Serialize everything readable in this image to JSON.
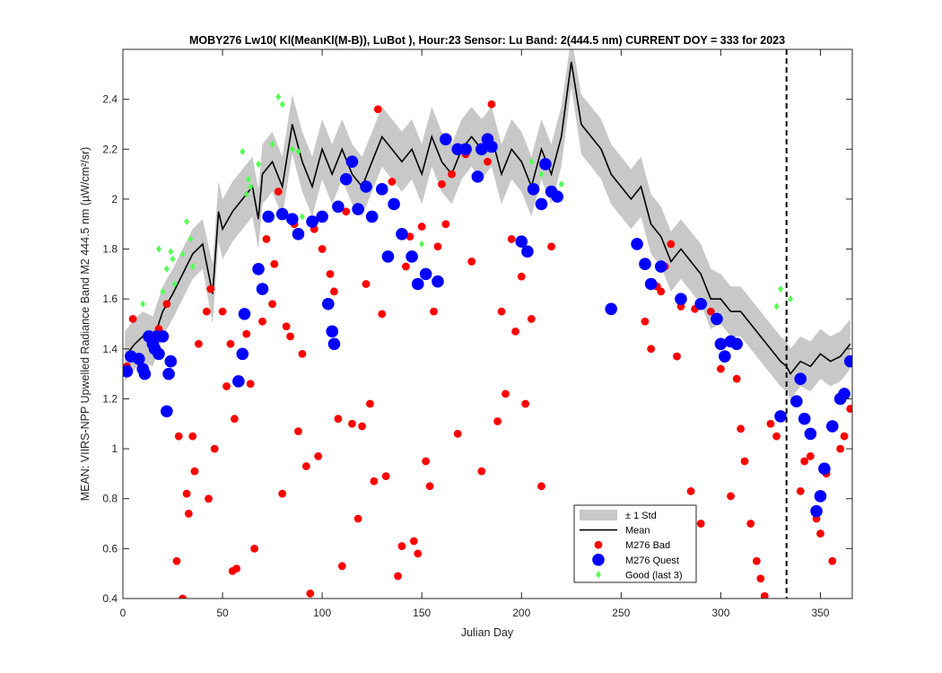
{
  "chart_data": {
    "type": "scatter",
    "title": "MOBY276   Lw10( Kl(MeanKl(M-B)), LuBot ),    Hour:23 Sensor: Lu Band: 2(444.5 nm)    CURRENT DOY = 333 for 2023",
    "xlabel": "Julian Day",
    "ylabel": "MEAN: VIIRS-NPP Upwelled Radiance Band M2 444.5 nm (µW/cm²/sr)",
    "xlim": [
      0,
      366
    ],
    "ylim": [
      0.4,
      2.6
    ],
    "xticks": [
      0,
      50,
      100,
      150,
      200,
      250,
      300,
      350
    ],
    "yticks": [
      0.4,
      0.6,
      0.8,
      1.0,
      1.2,
      1.4,
      1.6,
      1.8,
      2.0,
      2.2,
      2.4
    ],
    "ytick_labels": [
      "0.4",
      "0.6",
      "0.8",
      "1",
      "1.2",
      "1.4",
      "1.6",
      "1.8",
      "2",
      "2.2",
      "2.4"
    ],
    "current_doy": 333,
    "grid": false,
    "legend_position": "bottom-center",
    "legend": [
      {
        "label": "± 1 Std",
        "kind": "band",
        "color": "#c8c8c8"
      },
      {
        "label": "Mean",
        "kind": "line",
        "color": "#000000"
      },
      {
        "label": "M276 Bad",
        "kind": "dot",
        "color": "#ff0000"
      },
      {
        "label": "M276 Quest",
        "kind": "dot",
        "color": "#0000ff"
      },
      {
        "label": "Good (last 3)",
        "kind": "diamond",
        "color": "#55ff55"
      }
    ],
    "mean": {
      "x": [
        1,
        6,
        10,
        15,
        20,
        25,
        30,
        35,
        40,
        45,
        48,
        50,
        55,
        60,
        65,
        68,
        70,
        75,
        80,
        85,
        90,
        95,
        100,
        105,
        110,
        115,
        120,
        125,
        130,
        135,
        140,
        145,
        150,
        155,
        160,
        165,
        170,
        175,
        180,
        185,
        190,
        195,
        200,
        205,
        210,
        215,
        220,
        225,
        230,
        235,
        240,
        245,
        250,
        255,
        260,
        265,
        270,
        275,
        280,
        285,
        290,
        295,
        300,
        305,
        310,
        315,
        320,
        325,
        330,
        333,
        335,
        340,
        345,
        350,
        355,
        360,
        365
      ],
      "y": [
        1.37,
        1.42,
        1.45,
        1.43,
        1.55,
        1.62,
        1.7,
        1.78,
        1.82,
        1.62,
        1.95,
        1.88,
        1.95,
        2.0,
        2.05,
        1.92,
        2.1,
        2.15,
        2.05,
        2.3,
        2.15,
        2.05,
        2.2,
        2.1,
        2.2,
        2.1,
        2.05,
        2.15,
        2.25,
        2.2,
        2.15,
        2.2,
        2.1,
        2.25,
        2.15,
        2.1,
        2.2,
        2.25,
        2.2,
        2.25,
        2.1,
        2.2,
        2.15,
        2.05,
        2.2,
        2.1,
        2.25,
        2.55,
        2.3,
        2.25,
        2.2,
        2.1,
        2.05,
        2.0,
        2.05,
        1.9,
        1.85,
        1.75,
        1.8,
        1.75,
        1.7,
        1.6,
        1.6,
        1.55,
        1.55,
        1.5,
        1.45,
        1.4,
        1.35,
        1.33,
        1.3,
        1.35,
        1.33,
        1.38,
        1.35,
        1.37,
        1.42
      ],
      "std": [
        0.1,
        0.1,
        0.1,
        0.1,
        0.1,
        0.1,
        0.1,
        0.1,
        0.1,
        0.12,
        0.12,
        0.12,
        0.12,
        0.12,
        0.12,
        0.12,
        0.12,
        0.12,
        0.12,
        0.12,
        0.12,
        0.12,
        0.12,
        0.12,
        0.12,
        0.12,
        0.12,
        0.12,
        0.12,
        0.12,
        0.12,
        0.12,
        0.12,
        0.12,
        0.12,
        0.12,
        0.12,
        0.12,
        0.12,
        0.12,
        0.12,
        0.12,
        0.12,
        0.12,
        0.12,
        0.12,
        0.12,
        0.1,
        0.12,
        0.12,
        0.12,
        0.12,
        0.12,
        0.12,
        0.12,
        0.12,
        0.12,
        0.12,
        0.12,
        0.12,
        0.12,
        0.12,
        0.1,
        0.1,
        0.1,
        0.1,
        0.1,
        0.1,
        0.1,
        0.1,
        0.1,
        0.1,
        0.1,
        0.1,
        0.1,
        0.1,
        0.1
      ]
    },
    "series": [
      {
        "name": "M276 Bad",
        "x": [
          2,
          5,
          18,
          22,
          25,
          27,
          28,
          30,
          32,
          33,
          35,
          36,
          38,
          42,
          43,
          44,
          46,
          50,
          52,
          54,
          55,
          56,
          57,
          62,
          64,
          66,
          68,
          70,
          72,
          75,
          76,
          78,
          80,
          82,
          84,
          86,
          88,
          90,
          92,
          94,
          96,
          98,
          100,
          104,
          106,
          108,
          110,
          112,
          115,
          118,
          120,
          122,
          124,
          126,
          128,
          130,
          132,
          135,
          138,
          140,
          142,
          144,
          146,
          148,
          150,
          152,
          154,
          156,
          158,
          160,
          162,
          165,
          168,
          172,
          175,
          178,
          180,
          183,
          185,
          188,
          190,
          192,
          195,
          197,
          200,
          202,
          205,
          210,
          215,
          262,
          265,
          268,
          270,
          272,
          275,
          278,
          280,
          285,
          287,
          290,
          295,
          300,
          305,
          308,
          310,
          312,
          315,
          318,
          320,
          322,
          325,
          328,
          340,
          342,
          345,
          348,
          350,
          353,
          356,
          360,
          362,
          365
        ],
        "y": [
          1.33,
          1.52,
          1.48,
          1.58,
          1.35,
          0.55,
          1.05,
          0.4,
          0.82,
          0.74,
          1.05,
          0.91,
          1.42,
          1.55,
          0.8,
          1.64,
          1.0,
          1.55,
          1.25,
          1.42,
          0.51,
          1.12,
          0.52,
          1.46,
          1.26,
          0.6,
          1.72,
          1.51,
          1.84,
          1.58,
          1.74,
          2.03,
          0.82,
          1.49,
          1.45,
          1.9,
          1.07,
          1.38,
          0.93,
          0.42,
          1.88,
          0.97,
          1.8,
          1.7,
          1.63,
          1.12,
          0.53,
          1.95,
          1.1,
          0.72,
          1.09,
          1.66,
          1.18,
          0.87,
          2.36,
          1.54,
          0.89,
          2.07,
          0.49,
          0.61,
          1.73,
          1.85,
          0.63,
          0.58,
          1.89,
          0.95,
          0.85,
          1.55,
          1.81,
          2.06,
          1.9,
          2.1,
          1.06,
          2.18,
          1.75,
          2.09,
          0.91,
          2.15,
          2.38,
          1.11,
          1.55,
          1.22,
          1.84,
          1.47,
          1.69,
          1.18,
          1.52,
          0.85,
          1.81,
          1.51,
          1.4,
          1.65,
          1.63,
          1.73,
          1.82,
          1.37,
          1.57,
          0.83,
          1.56,
          0.7,
          1.55,
          1.32,
          0.81,
          1.28,
          1.08,
          0.95,
          0.7,
          0.55,
          0.48,
          0.41,
          1.1,
          1.05,
          0.83,
          0.95,
          0.97,
          0.72,
          0.66,
          0.9,
          0.55,
          1.0,
          1.05,
          1.16
        ]
      },
      {
        "name": "M276 Quest",
        "x": [
          2,
          4,
          8,
          10,
          11,
          13,
          15,
          16,
          17,
          18,
          20,
          22,
          23,
          24,
          58,
          60,
          61,
          68,
          70,
          73,
          80,
          85,
          88,
          95,
          100,
          103,
          105,
          106,
          108,
          112,
          115,
          118,
          122,
          125,
          130,
          133,
          136,
          140,
          145,
          148,
          152,
          158,
          162,
          168,
          172,
          178,
          180,
          183,
          185,
          200,
          203,
          206,
          210,
          212,
          215,
          218,
          245,
          258,
          262,
          265,
          270,
          280,
          290,
          298,
          300,
          302,
          305,
          308,
          330,
          338,
          340,
          342,
          345,
          348,
          350,
          352,
          356,
          360,
          362,
          365
        ],
        "y": [
          1.31,
          1.37,
          1.36,
          1.32,
          1.3,
          1.45,
          1.42,
          1.4,
          1.45,
          1.38,
          1.45,
          1.15,
          1.3,
          1.35,
          1.27,
          1.38,
          1.54,
          1.72,
          1.64,
          1.93,
          1.94,
          1.92,
          1.86,
          1.91,
          1.93,
          1.58,
          1.47,
          1.42,
          1.97,
          2.08,
          2.15,
          1.96,
          2.05,
          1.93,
          2.04,
          1.77,
          1.98,
          1.86,
          1.77,
          1.66,
          1.7,
          1.67,
          2.24,
          2.2,
          2.2,
          2.09,
          2.2,
          2.24,
          2.21,
          1.83,
          1.79,
          2.04,
          1.98,
          2.14,
          2.03,
          2.01,
          1.56,
          1.82,
          1.74,
          1.66,
          1.73,
          1.6,
          1.58,
          1.52,
          1.42,
          1.37,
          1.43,
          1.42,
          1.13,
          1.19,
          1.28,
          1.12,
          1.06,
          0.75,
          0.81,
          0.92,
          1.09,
          1.2,
          1.22,
          1.35
        ]
      },
      {
        "name": "Good (last 3)",
        "x": [
          10,
          18,
          20,
          22,
          24,
          25,
          26,
          30,
          32,
          34,
          35,
          60,
          62,
          63,
          64,
          68,
          75,
          78,
          80,
          85,
          88,
          90,
          150,
          205,
          210,
          220,
          328,
          330,
          335
        ],
        "y": [
          1.58,
          1.8,
          1.63,
          1.72,
          1.79,
          1.76,
          1.66,
          1.78,
          1.91,
          1.84,
          1.73,
          2.19,
          2.02,
          2.08,
          2.05,
          2.14,
          2.22,
          2.41,
          2.38,
          2.2,
          2.19,
          1.93,
          1.82,
          2.15,
          2.1,
          2.06,
          1.57,
          1.64,
          1.6
        ]
      }
    ]
  }
}
